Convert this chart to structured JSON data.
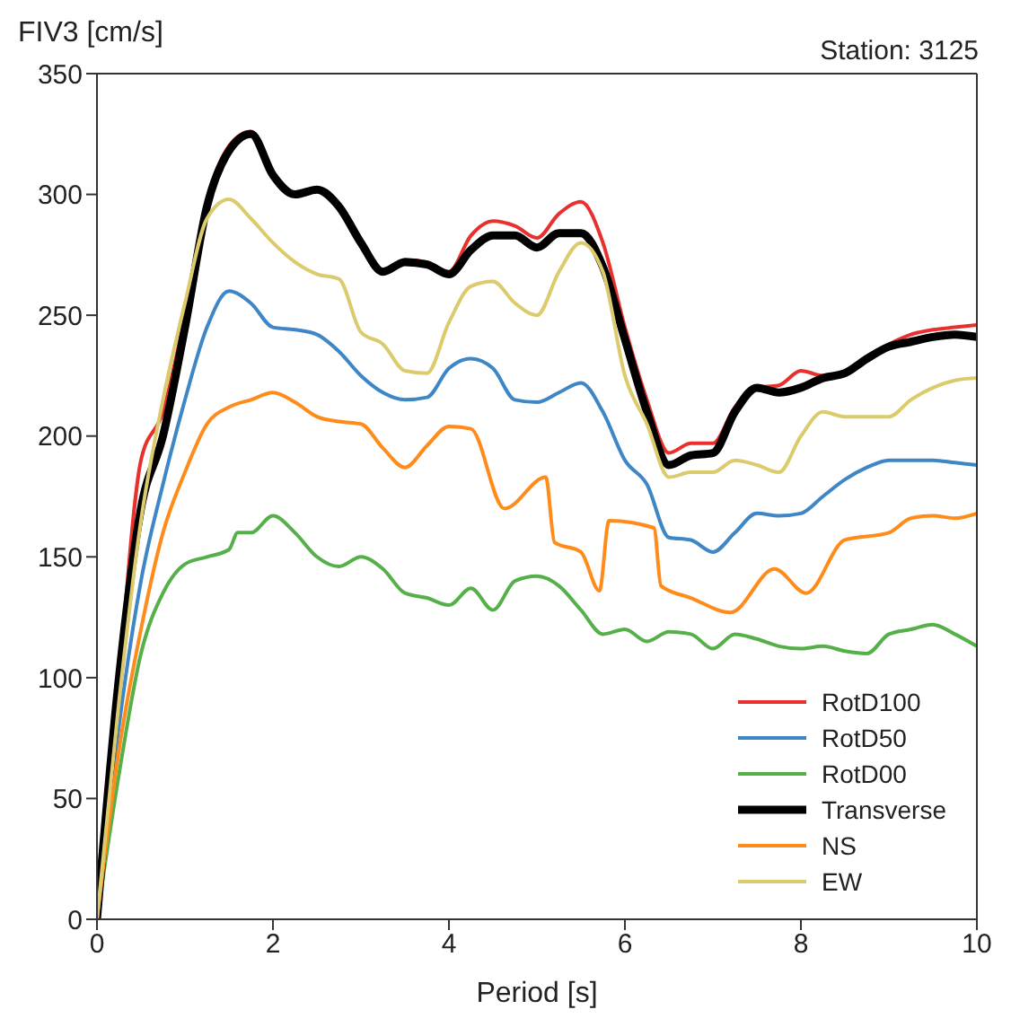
{
  "chart_data": {
    "type": "line",
    "ylabel": "FIV3 [cm/s]",
    "xlabel": "Period [s]",
    "annotations": [
      "Station: 3125"
    ],
    "xlim": [
      0,
      10
    ],
    "xticks": [
      0,
      2,
      4,
      6,
      8,
      10
    ],
    "ylim": [
      0,
      350
    ],
    "yticks": [
      0,
      50,
      100,
      150,
      200,
      250,
      300,
      350
    ],
    "grid": false,
    "legend": "bottom right",
    "line_style": "solid",
    "marker": "none",
    "series": [
      {
        "name": "RotD100",
        "color": "#e8302f",
        "x": [
          0,
          0.25,
          0.5,
          0.75,
          1,
          1.25,
          1.5,
          1.75,
          2,
          2.25,
          2.5,
          2.75,
          3,
          3.25,
          3.5,
          3.75,
          4,
          4.25,
          4.5,
          4.75,
          5,
          5.25,
          5.5,
          5.75,
          6,
          6.25,
          6.5,
          6.75,
          7,
          7.25,
          7.5,
          7.75,
          8,
          8.25,
          8.5,
          8.75,
          9,
          9.25,
          9.5,
          9.75,
          10
        ],
        "values": [
          0,
          100,
          190,
          210,
          250,
          297,
          320,
          326,
          308,
          300,
          302,
          295,
          280,
          268,
          273,
          272,
          268,
          283,
          289,
          287,
          282,
          292,
          297,
          280,
          245,
          215,
          193,
          197,
          197,
          212,
          220,
          221,
          227,
          225,
          226,
          233,
          238,
          242,
          244,
          245,
          246
        ]
      },
      {
        "name": "RotD50",
        "color": "#3f86c6",
        "x": [
          0,
          0.25,
          0.5,
          0.75,
          1,
          1.25,
          1.5,
          1.75,
          2,
          2.25,
          2.5,
          2.75,
          3,
          3.25,
          3.5,
          3.75,
          4,
          4.25,
          4.5,
          4.75,
          5,
          5.25,
          5.5,
          5.75,
          6,
          6.25,
          6.5,
          6.75,
          7,
          7.25,
          7.5,
          7.75,
          8,
          8.25,
          8.5,
          8.75,
          9,
          9.25,
          9.5,
          9.75,
          10
        ],
        "values": [
          0,
          80,
          140,
          180,
          215,
          245,
          260,
          255,
          245,
          244,
          242,
          235,
          225,
          218,
          215,
          216,
          228,
          232,
          228,
          215,
          214,
          218,
          222,
          210,
          190,
          180,
          158,
          157,
          152,
          160,
          168,
          167,
          168,
          175,
          182,
          187,
          190,
          190,
          190,
          189,
          188
        ]
      },
      {
        "name": "RotD00",
        "color": "#56b04a",
        "x": [
          0,
          0.25,
          0.5,
          0.75,
          1,
          1.25,
          1.5,
          1.6,
          1.75,
          2,
          2.25,
          2.5,
          2.75,
          3,
          3.25,
          3.5,
          3.75,
          4,
          4.25,
          4.5,
          4.75,
          5,
          5.25,
          5.5,
          5.75,
          6,
          6.25,
          6.5,
          6.75,
          7,
          7.25,
          7.5,
          7.75,
          8,
          8.25,
          8.5,
          8.75,
          9,
          9.25,
          9.5,
          9.75,
          10
        ],
        "values": [
          0,
          60,
          110,
          135,
          147,
          150,
          153,
          160,
          160,
          167,
          160,
          150,
          146,
          150,
          145,
          135,
          133,
          130,
          137,
          128,
          140,
          142,
          138,
          128,
          118,
          120,
          115,
          119,
          118,
          112,
          118,
          116,
          113,
          112,
          113,
          111,
          110,
          118,
          120,
          122,
          118,
          113
        ]
      },
      {
        "name": "Transverse",
        "color": "#000000",
        "x": [
          0,
          0.25,
          0.5,
          0.75,
          1,
          1.25,
          1.5,
          1.75,
          2,
          2.25,
          2.5,
          2.75,
          3,
          3.25,
          3.5,
          3.75,
          4,
          4.25,
          4.5,
          4.75,
          5,
          5.25,
          5.5,
          5.75,
          6,
          6.25,
          6.5,
          6.75,
          7,
          7.25,
          7.5,
          7.75,
          8,
          8.25,
          8.5,
          8.75,
          9,
          9.25,
          9.5,
          9.75,
          10
        ],
        "values": [
          0,
          100,
          170,
          200,
          245,
          295,
          318,
          325,
          308,
          300,
          302,
          295,
          280,
          268,
          272,
          271,
          267,
          277,
          283,
          283,
          278,
          284,
          284,
          270,
          240,
          210,
          188,
          192,
          193,
          210,
          220,
          218,
          220,
          224,
          226,
          232,
          237,
          239,
          241,
          242,
          241
        ]
      },
      {
        "name": "NS",
        "color": "#ff8c1a",
        "x": [
          0,
          0.25,
          0.5,
          0.75,
          1,
          1.25,
          1.5,
          1.75,
          2,
          2.25,
          2.5,
          2.75,
          3,
          3.25,
          3.5,
          3.75,
          4,
          4.25,
          4.63,
          5.1,
          5.2,
          5.5,
          5.71,
          5.82,
          6.33,
          6.41,
          6.75,
          7.2,
          7.7,
          8.06,
          8.5,
          9,
          9.25,
          9.5,
          9.75,
          10
        ],
        "values": [
          0,
          70,
          120,
          160,
          185,
          205,
          212,
          215,
          218,
          214,
          208,
          206,
          205,
          195,
          187,
          196,
          204,
          203,
          170,
          183,
          156,
          152,
          136,
          165,
          162,
          138,
          133,
          127,
          145,
          135,
          157,
          160,
          166,
          167,
          166,
          168
        ]
      },
      {
        "name": "EW",
        "color": "#dccb6c",
        "x": [
          0,
          0.25,
          0.5,
          0.75,
          1,
          1.25,
          1.5,
          1.75,
          2,
          2.25,
          2.5,
          2.75,
          3,
          3.25,
          3.5,
          3.75,
          4,
          4.25,
          4.5,
          4.75,
          5,
          5.25,
          5.5,
          5.75,
          6,
          6.25,
          6.5,
          6.75,
          7,
          7.25,
          7.5,
          7.75,
          8,
          8.25,
          8.5,
          8.75,
          9,
          9.25,
          9.5,
          9.75,
          10
        ],
        "values": [
          0,
          90,
          165,
          215,
          255,
          290,
          298,
          290,
          280,
          272,
          267,
          265,
          243,
          238,
          227,
          226,
          247,
          262,
          264,
          255,
          250,
          268,
          280,
          268,
          225,
          205,
          183,
          185,
          185,
          190,
          188,
          185,
          200,
          210,
          208,
          208,
          208,
          215,
          220,
          223,
          224
        ]
      }
    ]
  }
}
